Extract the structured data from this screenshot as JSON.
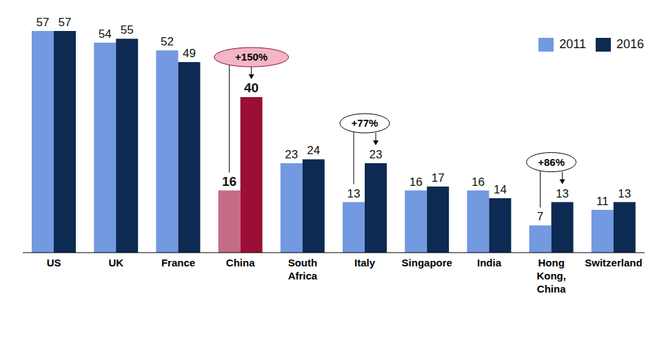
{
  "chart_data": {
    "type": "bar",
    "categories": [
      "US",
      "UK",
      "France",
      "China",
      "South Africa",
      "Italy",
      "Singapore",
      "India",
      "Hong Kong, China",
      "Switzerland"
    ],
    "series": [
      {
        "name": "2011",
        "color": "#7399e0",
        "values": [
          57,
          54,
          52,
          16,
          23,
          13,
          16,
          16,
          7,
          11
        ],
        "colors": [
          "#7399e0",
          "#7399e0",
          "#7399e0",
          "#c46c86",
          "#7399e0",
          "#7399e0",
          "#7399e0",
          "#7399e0",
          "#7399e0",
          "#7399e0"
        ]
      },
      {
        "name": "2016",
        "color": "#0c2a52",
        "values": [
          57,
          55,
          49,
          40,
          24,
          23,
          17,
          14,
          13,
          13
        ],
        "colors": [
          "#0c2a52",
          "#0c2a52",
          "#0c2a52",
          "#9b0e35",
          "#0c2a52",
          "#0c2a52",
          "#0c2a52",
          "#0c2a52",
          "#0c2a52",
          "#0c2a52"
        ]
      }
    ],
    "ylim": [
      0,
      57
    ],
    "tick_labels": "x",
    "data_labels": true,
    "legend": "top-right",
    "annotations": [
      {
        "category": "China",
        "label": "+150%",
        "color": "#f2b6c6"
      },
      {
        "category": "Italy",
        "label": "+77%"
      },
      {
        "category": "Hong Kong, China",
        "label": "+86%"
      }
    ]
  }
}
